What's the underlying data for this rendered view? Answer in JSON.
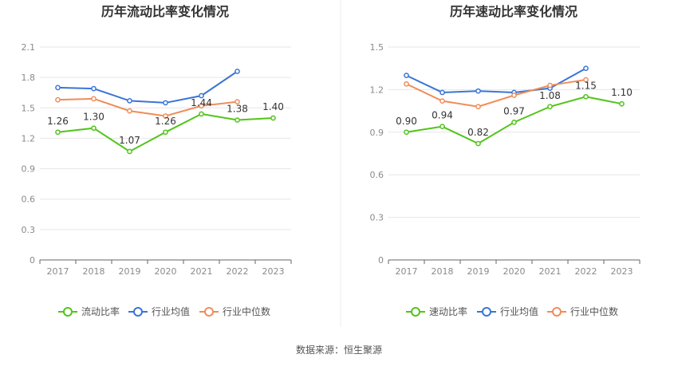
{
  "footer": {
    "source": "数据来源：恒生聚源"
  },
  "chart_data": [
    {
      "type": "line",
      "title": "历年流动比率变化情况",
      "categories": [
        "2017",
        "2018",
        "2019",
        "2020",
        "2021",
        "2022",
        "2023"
      ],
      "ylim": [
        0,
        2.1
      ],
      "yticks": [
        "0",
        "0.3",
        "0.6",
        "0.9",
        "1.2",
        "1.5",
        "1.8",
        "2.1"
      ],
      "grid": true,
      "legend_position": "bottom",
      "series": [
        {
          "name": "流动比率",
          "color": "#52c41a",
          "labeled": true,
          "values": [
            1.26,
            1.3,
            1.07,
            1.26,
            1.44,
            1.38,
            1.4
          ],
          "labels": [
            "1.26",
            "1.30",
            "1.07",
            "1.26",
            "1.44",
            "1.38",
            "1.40"
          ]
        },
        {
          "name": "行业均值",
          "color": "#3a75d6",
          "labeled": false,
          "values": [
            1.7,
            1.69,
            1.57,
            1.55,
            1.62,
            1.86,
            null
          ]
        },
        {
          "name": "行业中位数",
          "color": "#f08c5a",
          "labeled": false,
          "values": [
            1.58,
            1.59,
            1.47,
            1.42,
            1.52,
            1.56,
            null
          ]
        }
      ]
    },
    {
      "type": "line",
      "title": "历年速动比率变化情况",
      "categories": [
        "2017",
        "2018",
        "2019",
        "2020",
        "2021",
        "2022",
        "2023"
      ],
      "ylim": [
        0,
        1.5
      ],
      "yticks": [
        "0",
        "0.3",
        "0.6",
        "0.9",
        "1.2",
        "1.5"
      ],
      "grid": true,
      "legend_position": "bottom",
      "series": [
        {
          "name": "速动比率",
          "color": "#52c41a",
          "labeled": true,
          "values": [
            0.9,
            0.94,
            0.82,
            0.97,
            1.08,
            1.15,
            1.1
          ],
          "labels": [
            "0.90",
            "0.94",
            "0.82",
            "0.97",
            "1.08",
            "1.15",
            "1.10"
          ]
        },
        {
          "name": "行业均值",
          "color": "#3a75d6",
          "labeled": false,
          "values": [
            1.3,
            1.18,
            1.19,
            1.18,
            1.21,
            1.35,
            null
          ]
        },
        {
          "name": "行业中位数",
          "color": "#f08c5a",
          "labeled": false,
          "values": [
            1.24,
            1.12,
            1.08,
            1.16,
            1.23,
            1.27,
            null
          ]
        }
      ]
    }
  ]
}
